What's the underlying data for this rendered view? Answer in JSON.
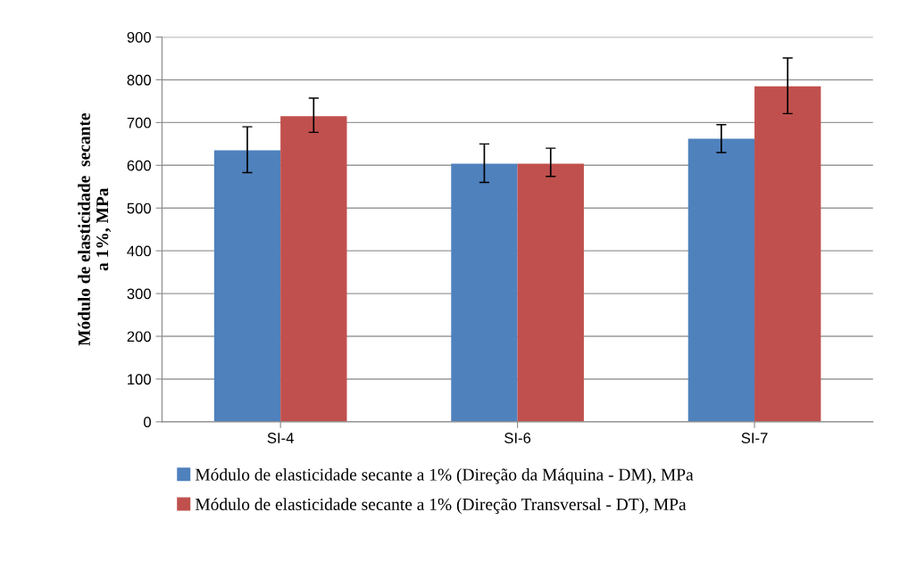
{
  "chart_data": {
    "type": "bar",
    "ylabel": "Módulo de elasticidade  secante\na 1%, MPa",
    "categories": [
      "SI-4",
      "SI-6",
      "SI-7"
    ],
    "series": [
      {
        "name": "Módulo de elasticidade secante a 1% (Direção da Máquina - DM), MPa",
        "color": "#4f81bd",
        "values": [
          635,
          604,
          662
        ],
        "errors": [
          [
            583,
            690
          ],
          [
            560,
            650
          ],
          [
            630,
            695
          ]
        ]
      },
      {
        "name": "Módulo de elasticidade secante a 1% (Direção Transversal - DT), MPa",
        "color": "#c0504d",
        "values": [
          715,
          604,
          785
        ],
        "errors": [
          [
            677,
            757
          ],
          [
            574,
            640
          ],
          [
            721,
            851
          ]
        ]
      }
    ],
    "ylim": [
      0,
      900
    ],
    "yticks": [
      0,
      100,
      200,
      300,
      400,
      500,
      600,
      700,
      800,
      900
    ],
    "grid": "y",
    "legend": "bottom"
  }
}
